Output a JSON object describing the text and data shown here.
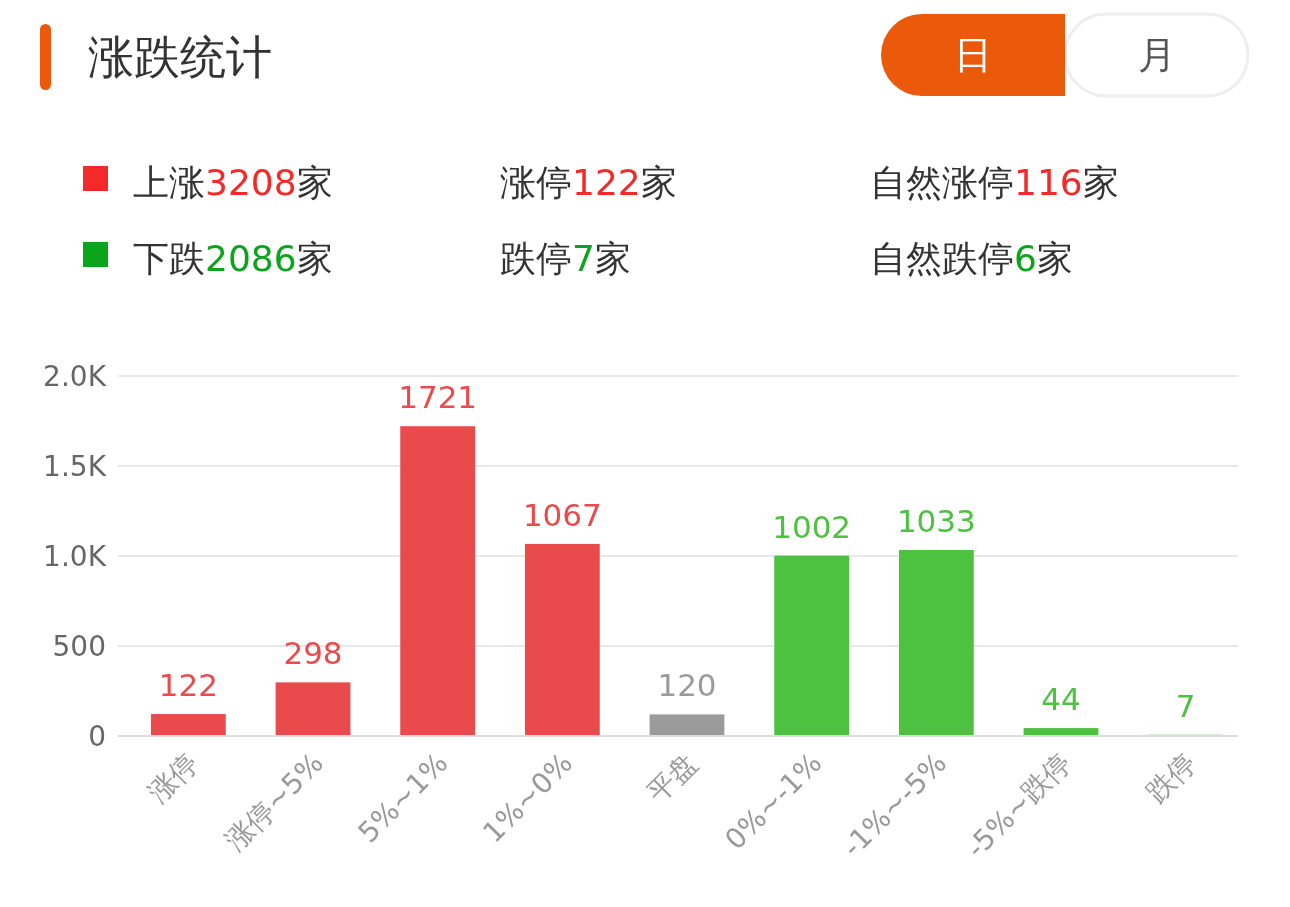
{
  "chart_data": {
    "type": "bar",
    "title": "涨跌统计",
    "categories": [
      "涨停",
      "涨停~5%",
      "5%~1%",
      "1%~0%",
      "平盘",
      "0%~-1%",
      "-1%~-5%",
      "-5%~跌停",
      "跌停"
    ],
    "values": [
      122,
      298,
      1721,
      1067,
      120,
      1002,
      1033,
      44,
      7
    ],
    "colors": [
      "#e94a4b",
      "#e94a4b",
      "#e94a4b",
      "#e94a4b",
      "#9b9b9b",
      "#4dc140",
      "#4dc140",
      "#4dc140",
      "#4dc140"
    ],
    "ylim": [
      0,
      2000
    ],
    "yticks": [
      0,
      500,
      {
        "value": 1000,
        "label": "1.0K"
      },
      {
        "value": 1500,
        "label": "1.5K"
      },
      {
        "value": 2000,
        "label": "2.0K"
      }
    ],
    "grid": "y",
    "data_labels": true,
    "annotations": [
      "上涨3208家",
      "涨停122家",
      "自然涨停116家",
      "下跌2086家",
      "跌停7家",
      "自然跌停6家",
      "日",
      "月"
    ]
  }
}
